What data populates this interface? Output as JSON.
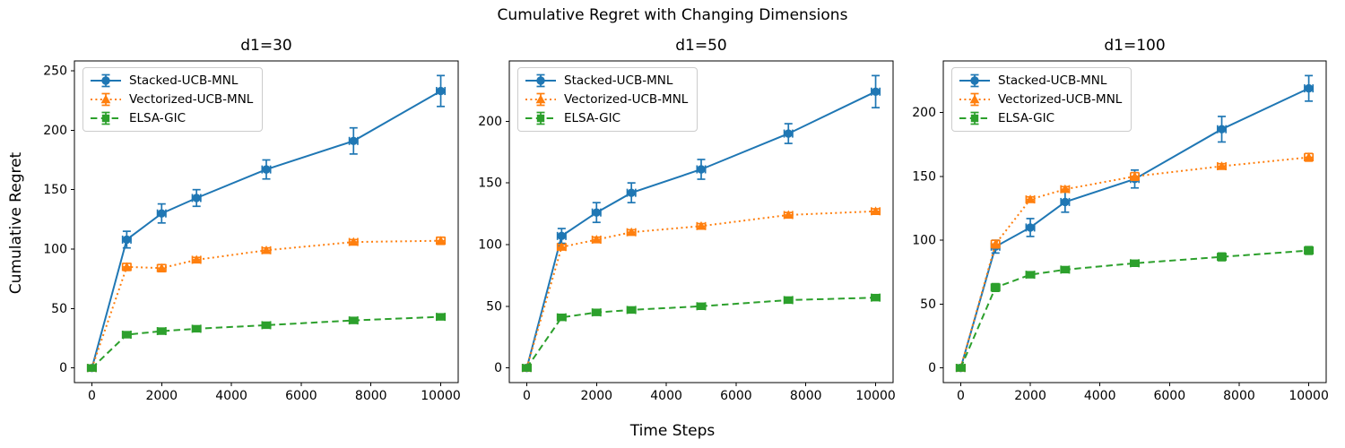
{
  "figure": {
    "suptitle": "Cumulative Regret with Changing Dimensions",
    "xlabel": "Time Steps",
    "ylabel": "Cumulative Regret",
    "background": "#ffffff",
    "text_color": "#000000",
    "spine_color": "#000000"
  },
  "legend": {
    "entries": [
      "Stacked-UCB-MNL",
      "Vectorized-UCB-MNL",
      "ELSA-GIC"
    ],
    "position": "upper left"
  },
  "chart_data": [
    {
      "type": "line",
      "title": "d1=30",
      "xlabel": "Time Steps",
      "ylabel": "Cumulative Regret",
      "x": [
        0,
        1000,
        2000,
        3000,
        5000,
        7500,
        10000
      ],
      "xticks": [
        0,
        2000,
        4000,
        6000,
        8000,
        10000
      ],
      "yticks": [
        0,
        50,
        100,
        150,
        200,
        250
      ],
      "xlim": [
        -500,
        10500
      ],
      "ylim": [
        -12.3,
        258.3
      ],
      "grid": false,
      "xerr": 120,
      "legend_position": "upper left",
      "series": [
        {
          "name": "Stacked-UCB-MNL",
          "color": "#1f77b4",
          "linestyle": "solid",
          "marker": "circle",
          "values": [
            0,
            108,
            130,
            143,
            167,
            191,
            233
          ],
          "yerr": [
            0,
            7,
            8,
            7,
            8,
            11,
            13
          ]
        },
        {
          "name": "Vectorized-UCB-MNL",
          "color": "#ff7f0e",
          "linestyle": "dotted",
          "marker": "triangle",
          "values": [
            0,
            85,
            84,
            91,
            99,
            106,
            107
          ],
          "yerr": [
            0,
            3,
            3,
            2,
            2,
            2,
            3
          ]
        },
        {
          "name": "ELSA-GIC",
          "color": "#2ca02c",
          "linestyle": "dashed",
          "marker": "square",
          "values": [
            0,
            28,
            31,
            33,
            36,
            40,
            43
          ],
          "yerr": [
            0,
            2,
            2,
            2,
            2,
            2,
            2
          ]
        }
      ]
    },
    {
      "type": "line",
      "title": "d1=50",
      "xlabel": "Time Steps",
      "ylabel": "Cumulative Regret",
      "x": [
        0,
        1000,
        2000,
        3000,
        5000,
        7500,
        10000
      ],
      "xticks": [
        0,
        2000,
        4000,
        6000,
        8000,
        10000
      ],
      "yticks": [
        0,
        50,
        100,
        150,
        200
      ],
      "xlim": [
        -500,
        10500
      ],
      "ylim": [
        -11.9,
        248.9
      ],
      "grid": false,
      "xerr": 120,
      "legend_position": "upper left",
      "series": [
        {
          "name": "Stacked-UCB-MNL",
          "color": "#1f77b4",
          "linestyle": "solid",
          "marker": "circle",
          "values": [
            0,
            107,
            126,
            142,
            161,
            190,
            224
          ],
          "yerr": [
            0,
            6,
            8,
            8,
            8,
            8,
            13
          ]
        },
        {
          "name": "Vectorized-UCB-MNL",
          "color": "#ff7f0e",
          "linestyle": "dotted",
          "marker": "triangle",
          "values": [
            0,
            98,
            104,
            110,
            115,
            124,
            127
          ],
          "yerr": [
            0,
            2,
            2,
            2,
            2,
            2,
            2
          ]
        },
        {
          "name": "ELSA-GIC",
          "color": "#2ca02c",
          "linestyle": "dashed",
          "marker": "square",
          "values": [
            0,
            41,
            45,
            47,
            50,
            55,
            57
          ],
          "yerr": [
            0,
            2,
            2,
            2,
            2,
            2,
            2
          ]
        }
      ]
    },
    {
      "type": "line",
      "title": "d1=100",
      "xlabel": "Time Steps",
      "ylabel": "Cumulative Regret",
      "x": [
        0,
        1000,
        2000,
        3000,
        5000,
        7500,
        10000
      ],
      "xticks": [
        0,
        2000,
        4000,
        6000,
        8000,
        10000
      ],
      "yticks": [
        0,
        50,
        100,
        150,
        200
      ],
      "xlim": [
        -500,
        10500
      ],
      "ylim": [
        -11.5,
        240.5
      ],
      "grid": false,
      "xerr": 120,
      "legend_position": "upper left",
      "series": [
        {
          "name": "Stacked-UCB-MNL",
          "color": "#1f77b4",
          "linestyle": "solid",
          "marker": "circle",
          "values": [
            0,
            95,
            110,
            130,
            148,
            187,
            219
          ],
          "yerr": [
            0,
            5,
            7,
            8,
            7,
            10,
            10
          ]
        },
        {
          "name": "Vectorized-UCB-MNL",
          "color": "#ff7f0e",
          "linestyle": "dotted",
          "marker": "triangle",
          "values": [
            0,
            97,
            132,
            140,
            150,
            158,
            165
          ],
          "yerr": [
            0,
            3,
            2,
            2,
            3,
            2,
            3
          ]
        },
        {
          "name": "ELSA-GIC",
          "color": "#2ca02c",
          "linestyle": "dashed",
          "marker": "square",
          "values": [
            0,
            63,
            73,
            77,
            82,
            87,
            92
          ],
          "yerr": [
            0,
            3,
            2,
            2,
            2,
            3,
            3
          ]
        }
      ]
    }
  ]
}
